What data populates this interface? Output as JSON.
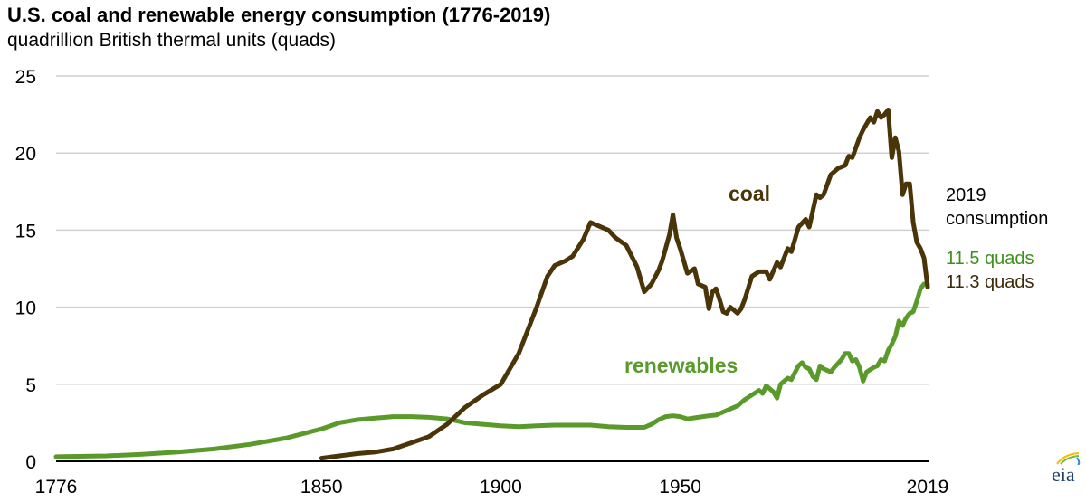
{
  "chart_data": {
    "type": "line",
    "title": "U.S. coal and renewable energy consumption (1776-2019)",
    "subtitle": "quadrillion British thermal units (quads)",
    "xlabel": "",
    "ylabel": "quadrillion British thermal units (quads)",
    "xlim": [
      1776,
      2019
    ],
    "ylim": [
      0,
      25
    ],
    "x_ticks": [
      "1776",
      "1850",
      "1900",
      "1950",
      "2019"
    ],
    "y_ticks": [
      "0",
      "5",
      "10",
      "15",
      "20",
      "25"
    ],
    "grid": true,
    "colors": {
      "coal": "#4a3509",
      "renewables": "#5a9a2b"
    },
    "series": [
      {
        "name": "coal",
        "label": "coal",
        "points": [
          [
            1850,
            0.2
          ],
          [
            1855,
            0.35
          ],
          [
            1860,
            0.5
          ],
          [
            1865,
            0.6
          ],
          [
            1870,
            0.8
          ],
          [
            1875,
            1.2
          ],
          [
            1880,
            1.6
          ],
          [
            1885,
            2.4
          ],
          [
            1890,
            3.5
          ],
          [
            1895,
            4.3
          ],
          [
            1900,
            5.0
          ],
          [
            1905,
            7.0
          ],
          [
            1910,
            10.0
          ],
          [
            1913,
            12.0
          ],
          [
            1915,
            12.7
          ],
          [
            1918,
            13.0
          ],
          [
            1920,
            13.3
          ],
          [
            1923,
            14.4
          ],
          [
            1925,
            15.5
          ],
          [
            1930,
            15.0
          ],
          [
            1932,
            14.5
          ],
          [
            1935,
            14.0
          ],
          [
            1938,
            12.6
          ],
          [
            1940,
            11.0
          ],
          [
            1942,
            11.5
          ],
          [
            1944,
            12.4
          ],
          [
            1945,
            13.0
          ],
          [
            1947,
            14.7
          ],
          [
            1948,
            16.0
          ],
          [
            1949,
            14.5
          ],
          [
            1950,
            13.8
          ],
          [
            1952,
            12.2
          ],
          [
            1954,
            12.5
          ],
          [
            1955,
            11.5
          ],
          [
            1957,
            11.3
          ],
          [
            1958,
            9.9
          ],
          [
            1959,
            11.0
          ],
          [
            1960,
            11.2
          ],
          [
            1961,
            10.5
          ],
          [
            1962,
            9.7
          ],
          [
            1963,
            9.6
          ],
          [
            1964,
            10.0
          ],
          [
            1965,
            9.8
          ],
          [
            1966,
            9.6
          ],
          [
            1967,
            9.9
          ],
          [
            1968,
            10.5
          ],
          [
            1970,
            12.0
          ],
          [
            1972,
            12.3
          ],
          [
            1974,
            12.3
          ],
          [
            1975,
            11.8
          ],
          [
            1977,
            12.9
          ],
          [
            1978,
            12.6
          ],
          [
            1980,
            13.8
          ],
          [
            1981,
            13.6
          ],
          [
            1983,
            15.2
          ],
          [
            1985,
            15.7
          ],
          [
            1986,
            15.2
          ],
          [
            1988,
            17.3
          ],
          [
            1989,
            17.1
          ],
          [
            1990,
            17.3
          ],
          [
            1992,
            18.6
          ],
          [
            1994,
            19.0
          ],
          [
            1996,
            19.2
          ],
          [
            1997,
            19.8
          ],
          [
            1998,
            19.7
          ],
          [
            2000,
            21.0
          ],
          [
            2001,
            21.5
          ],
          [
            2003,
            22.3
          ],
          [
            2004,
            22.0
          ],
          [
            2005,
            22.7
          ],
          [
            2006,
            22.3
          ],
          [
            2007,
            22.5
          ],
          [
            2008,
            22.8
          ],
          [
            2009,
            19.7
          ],
          [
            2010,
            21.0
          ],
          [
            2011,
            20.1
          ],
          [
            2012,
            17.3
          ],
          [
            2013,
            18.0
          ],
          [
            2014,
            18.0
          ],
          [
            2015,
            15.5
          ],
          [
            2016,
            14.2
          ],
          [
            2017,
            13.8
          ],
          [
            2018,
            13.2
          ],
          [
            2019,
            11.3
          ]
        ]
      },
      {
        "name": "renewables",
        "label": "renewables",
        "points": [
          [
            1776,
            0.3
          ],
          [
            1790,
            0.35
          ],
          [
            1800,
            0.45
          ],
          [
            1810,
            0.6
          ],
          [
            1820,
            0.8
          ],
          [
            1830,
            1.1
          ],
          [
            1840,
            1.5
          ],
          [
            1850,
            2.1
          ],
          [
            1855,
            2.5
          ],
          [
            1860,
            2.7
          ],
          [
            1865,
            2.8
          ],
          [
            1870,
            2.9
          ],
          [
            1875,
            2.9
          ],
          [
            1880,
            2.85
          ],
          [
            1885,
            2.75
          ],
          [
            1890,
            2.5
          ],
          [
            1895,
            2.4
          ],
          [
            1900,
            2.3
          ],
          [
            1905,
            2.25
          ],
          [
            1910,
            2.3
          ],
          [
            1915,
            2.35
          ],
          [
            1920,
            2.35
          ],
          [
            1925,
            2.35
          ],
          [
            1930,
            2.25
          ],
          [
            1935,
            2.2
          ],
          [
            1940,
            2.2
          ],
          [
            1942,
            2.4
          ],
          [
            1944,
            2.7
          ],
          [
            1946,
            2.9
          ],
          [
            1948,
            2.95
          ],
          [
            1950,
            2.9
          ],
          [
            1952,
            2.75
          ],
          [
            1955,
            2.85
          ],
          [
            1958,
            2.95
          ],
          [
            1960,
            3.0
          ],
          [
            1962,
            3.2
          ],
          [
            1964,
            3.4
          ],
          [
            1966,
            3.6
          ],
          [
            1968,
            4.0
          ],
          [
            1970,
            4.3
          ],
          [
            1972,
            4.6
          ],
          [
            1973,
            4.4
          ],
          [
            1974,
            4.9
          ],
          [
            1975,
            4.7
          ],
          [
            1976,
            4.5
          ],
          [
            1977,
            4.1
          ],
          [
            1978,
            5.0
          ],
          [
            1980,
            5.4
          ],
          [
            1981,
            5.3
          ],
          [
            1983,
            6.2
          ],
          [
            1984,
            6.4
          ],
          [
            1985,
            6.1
          ],
          [
            1986,
            6.0
          ],
          [
            1987,
            5.5
          ],
          [
            1988,
            5.3
          ],
          [
            1989,
            6.2
          ],
          [
            1990,
            6.0
          ],
          [
            1992,
            5.8
          ],
          [
            1993,
            6.1
          ],
          [
            1995,
            6.6
          ],
          [
            1996,
            7.0
          ],
          [
            1997,
            7.0
          ],
          [
            1998,
            6.5
          ],
          [
            1999,
            6.6
          ],
          [
            2000,
            6.1
          ],
          [
            2001,
            5.2
          ],
          [
            2002,
            5.8
          ],
          [
            2004,
            6.1
          ],
          [
            2005,
            6.2
          ],
          [
            2006,
            6.6
          ],
          [
            2007,
            6.5
          ],
          [
            2008,
            7.2
          ],
          [
            2009,
            7.6
          ],
          [
            2010,
            8.1
          ],
          [
            2011,
            9.1
          ],
          [
            2012,
            8.8
          ],
          [
            2013,
            9.3
          ],
          [
            2014,
            9.6
          ],
          [
            2015,
            9.7
          ],
          [
            2016,
            10.4
          ],
          [
            2017,
            11.2
          ],
          [
            2018,
            11.5
          ],
          [
            2019,
            11.5
          ]
        ]
      }
    ],
    "annotations": {
      "header": [
        "2019",
        "consumption"
      ],
      "renewables_value": "11.5 quads",
      "coal_value": "11.3 quads"
    },
    "legend": "inline labels near lines"
  },
  "branding": {
    "logo_text": "eia"
  }
}
